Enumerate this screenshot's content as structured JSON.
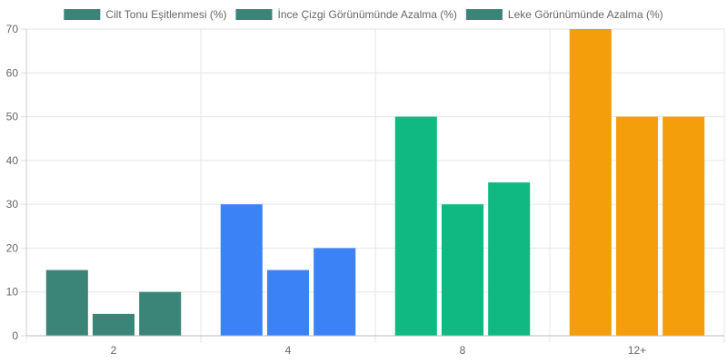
{
  "chart_data": {
    "type": "bar",
    "categories": [
      "2",
      "4",
      "8",
      "12+"
    ],
    "series": [
      {
        "name": "Cilt Tonu Eşitlenmesi (%)",
        "values": [
          15,
          30,
          50,
          70
        ]
      },
      {
        "name": "İnce Çizgi Görünümünde Azalma (%)",
        "values": [
          5,
          15,
          30,
          50
        ]
      },
      {
        "name": "Leke Görünümünde Azalma (%)",
        "values": [
          10,
          20,
          35,
          50
        ]
      }
    ],
    "category_colors": [
      "#3a8577",
      "#3b82f6",
      "#10b981",
      "#f59e0b"
    ],
    "legend_color": "#3a8577",
    "ylim": [
      0,
      70
    ],
    "yticks": [
      0,
      10,
      20,
      30,
      40,
      50,
      60,
      70
    ],
    "legend_position": "top-center",
    "grid": true
  }
}
